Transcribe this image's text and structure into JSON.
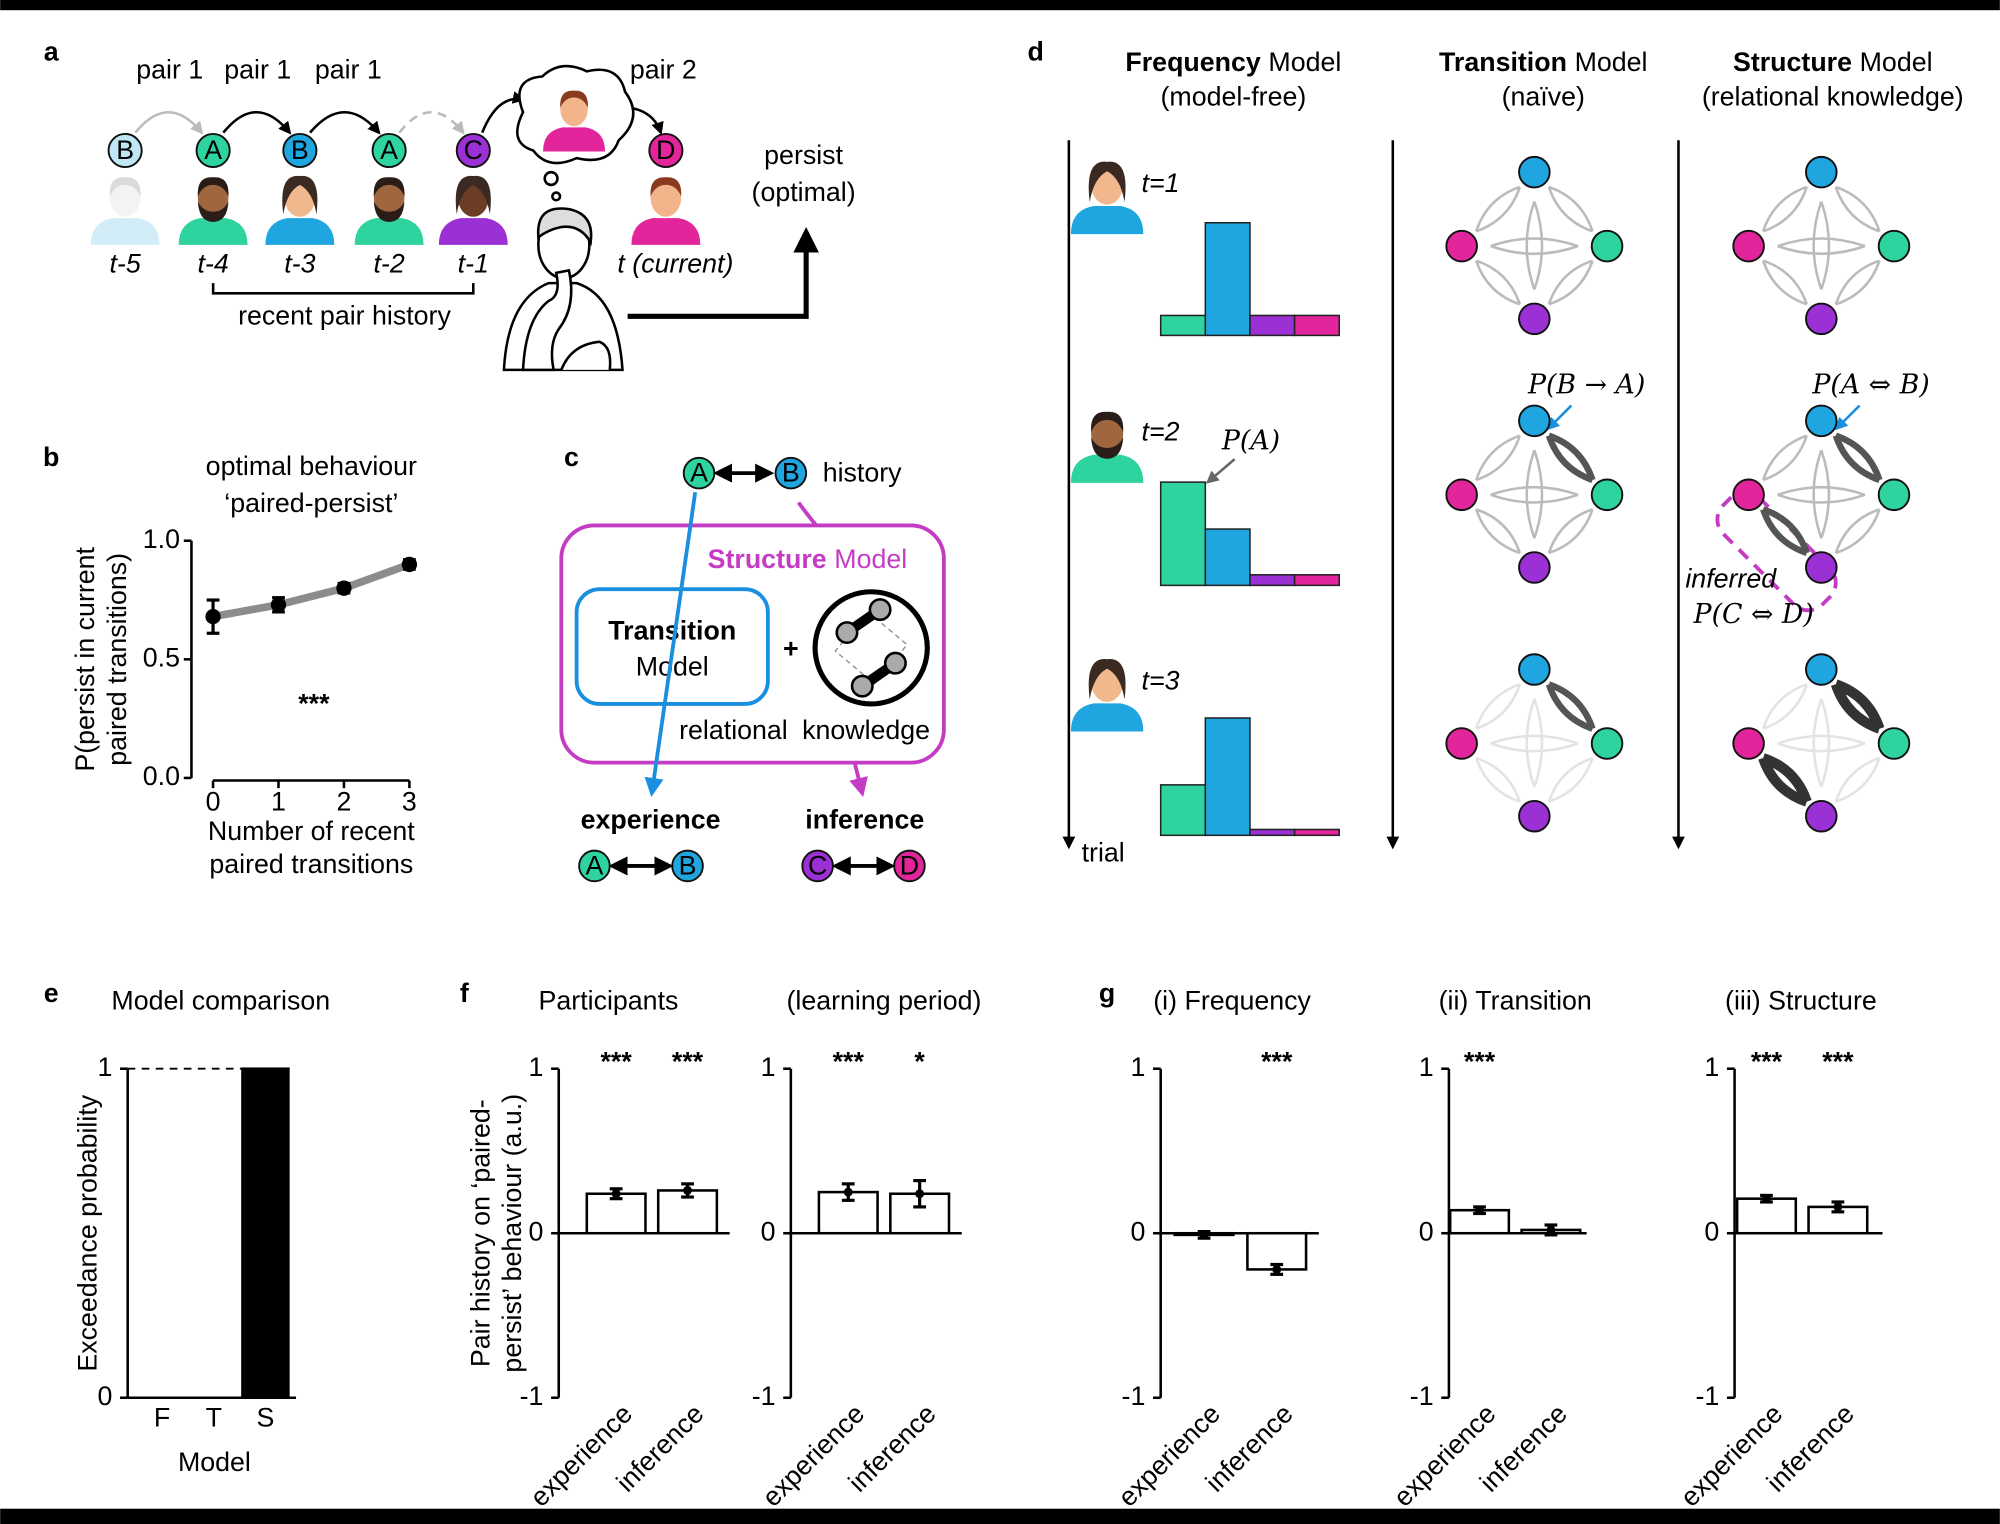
{
  "figure": {
    "panel_labels": {
      "a": "a",
      "b": "b",
      "c": "c",
      "d": "d",
      "e": "e",
      "f": "f",
      "g": "g"
    },
    "a": {
      "pairs": [
        "pair 1",
        "pair 1",
        "pair 1",
        "pair 2"
      ],
      "nodes": [
        "B",
        "A",
        "B",
        "A",
        "C",
        "D"
      ],
      "times": [
        "t-5",
        "t-4",
        "t-3",
        "t-2",
        "t-1",
        "t (current)"
      ],
      "history": "recent pair history",
      "outcome": [
        "persist",
        "(optimal)"
      ]
    },
    "c": {
      "nodes": [
        "A",
        "B",
        "C",
        "D"
      ],
      "history": "history",
      "structure": [
        "Structure",
        "Model"
      ],
      "transition": [
        "Transition",
        "Model"
      ],
      "plus": "+",
      "relational": "relational",
      "knowledge": "knowledge",
      "experience": "experience",
      "inference": "inference"
    },
    "d": {
      "models": [
        {
          "name": "Frequency",
          "suffix": "Model",
          "note": "(model-free)"
        },
        {
          "name": "Transition",
          "suffix": "Model",
          "note": "(naïve)"
        },
        {
          "name": "Structure",
          "suffix": "Model",
          "note": "(relational knowledge)"
        }
      ],
      "trials": [
        "t=1",
        "t=2",
        "t=3"
      ],
      "axis": "trial",
      "annotations": [
        "P(A)",
        "P(B → A)",
        "P(A ⇔ B)",
        "inferred",
        "P(C ⇔ D)"
      ]
    }
  },
  "chart_data": [
    {
      "type": "line",
      "title": [
        "optimal behaviour",
        "‘paired-persist’"
      ],
      "ylabel": [
        "P(persist in current",
        "paired transitions)"
      ],
      "xlabel": [
        "Number of recent",
        "paired transitions"
      ],
      "x": [
        0,
        1,
        2,
        3
      ],
      "values": [
        0.68,
        0.73,
        0.8,
        0.9
      ],
      "errors": [
        0.07,
        0.03,
        0.02,
        0.02
      ],
      "color": "#000000",
      "line_color": "#8c8c8c",
      "xlim": [
        -0.33,
        3.08
      ],
      "ylim": [
        0,
        1
      ],
      "xticks": [
        0,
        1,
        2,
        3
      ],
      "yticks": [
        {
          "value": 0,
          "label": "0.0"
        },
        {
          "value": 0.5,
          "label": "0.5"
        },
        {
          "value": 1,
          "label": "1.0"
        }
      ],
      "annotation": "***"
    },
    {
      "type": "bar",
      "title": "Model comparison",
      "ylabel": [
        "Exceedance probability"
      ],
      "xlabel": "Model",
      "categories": [
        "F",
        "T",
        "S"
      ],
      "values": [
        0,
        0,
        1
      ],
      "color": "#000000",
      "ylim": [
        0,
        1
      ],
      "yticks": [
        0,
        1
      ],
      "hline": 1
    },
    {
      "type": "bar",
      "title": "Participants",
      "ylabel": [
        "Pair history on ‘paired-",
        "persist’ behaviour (a.u.)"
      ],
      "categories": [
        "experience",
        "inference"
      ],
      "values": [
        0.24,
        0.26
      ],
      "errors": [
        0.03,
        0.04
      ],
      "annotations": [
        "***",
        "***"
      ],
      "color": "#ffffff",
      "ylim": [
        -1,
        1
      ],
      "yticks": [
        -1,
        0,
        1
      ]
    },
    {
      "type": "bar",
      "title": "(learning period)",
      "categories": [
        "experience",
        "inference"
      ],
      "values": [
        0.25,
        0.24
      ],
      "errors": [
        0.05,
        0.08
      ],
      "annotations": [
        "***",
        "*"
      ],
      "color": "#ffffff",
      "ylim": [
        -1,
        1
      ],
      "yticks": [
        -1,
        0,
        1
      ]
    },
    {
      "type": "bar",
      "title": "(i) Frequency",
      "categories": [
        "experience",
        "inference"
      ],
      "values": [
        -0.01,
        -0.22
      ],
      "errors": [
        0.02,
        0.03
      ],
      "annotations": [
        null,
        "***"
      ],
      "color": "#ffffff",
      "ylim": [
        -1,
        1
      ],
      "yticks": [
        -1,
        0,
        1
      ]
    },
    {
      "type": "bar",
      "title": "(ii) Transition",
      "categories": [
        "experience",
        "inference"
      ],
      "values": [
        0.14,
        0.02
      ],
      "errors": [
        0.02,
        0.03
      ],
      "annotations": [
        "***",
        null
      ],
      "color": "#ffffff",
      "ylim": [
        -1,
        1
      ],
      "yticks": [
        -1,
        0,
        1
      ]
    },
    {
      "type": "bar",
      "title": "(iii) Structure",
      "categories": [
        "experience",
        "inference"
      ],
      "values": [
        0.21,
        0.16
      ],
      "errors": [
        0.02,
        0.03
      ],
      "annotations": [
        "***",
        "***"
      ],
      "color": "#ffffff",
      "ylim": [
        -1,
        1
      ],
      "yticks": [
        -1,
        0,
        1
      ]
    },
    {
      "type": "bar",
      "values": [
        0.17,
        0.96,
        0.17,
        0.17
      ],
      "colors": [
        "#2ed3a0",
        "#1fa5df",
        "#9b30d4",
        "#e2259b"
      ],
      "ylim": [
        0,
        1
      ]
    },
    {
      "type": "bar",
      "values": [
        0.88,
        0.48,
        0.09,
        0.09
      ],
      "colors": [
        "#2ed3a0",
        "#1fa5df",
        "#9b30d4",
        "#e2259b"
      ],
      "ylim": [
        0,
        1
      ]
    },
    {
      "type": "bar",
      "values": [
        0.43,
        1.0,
        0.05,
        0.05
      ],
      "colors": [
        "#2ed3a0",
        "#1fa5df",
        "#9b30d4",
        "#e2259b"
      ],
      "ylim": [
        0,
        1
      ]
    }
  ]
}
